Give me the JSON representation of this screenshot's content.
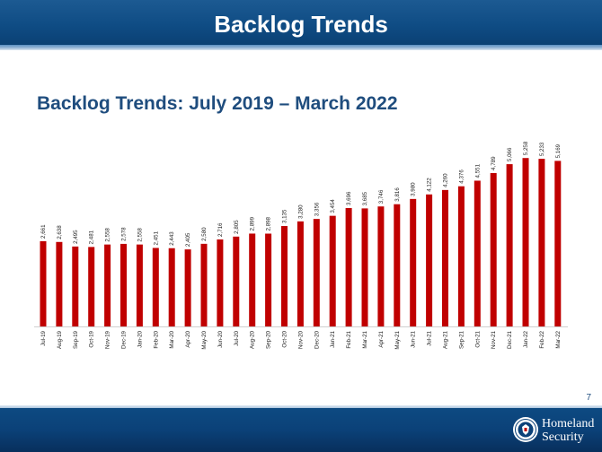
{
  "slide": {
    "header": "Backlog Trends",
    "page_number": "7",
    "logo": {
      "line1": "Homeland",
      "line2": "Security"
    }
  },
  "chart_data": {
    "type": "bar",
    "title": "Backlog Trends: July 2019 – March 2022",
    "xlabel": "",
    "ylabel": "",
    "ylim": [
      0,
      5600
    ],
    "grid": false,
    "bar_color": "#c00000",
    "categories": [
      "Jul-19",
      "Aug-19",
      "Sep-19",
      "Oct-19",
      "Nov-19",
      "Dec-19",
      "Jan-20",
      "Feb-20",
      "Mar-20",
      "Apr-20",
      "May-20",
      "Jun-20",
      "Jul-20",
      "Aug-20",
      "Sep-20",
      "Oct-20",
      "Nov-20",
      "Dec-20",
      "Jan-21",
      "Feb-21",
      "Mar-21",
      "Apr-21",
      "May-21",
      "Jun-21",
      "Jul-21",
      "Aug-21",
      "Sep-21",
      "Oct-21",
      "Nov-21",
      "Dec-21",
      "Jan-22",
      "Feb-22",
      "Mar-22"
    ],
    "values": [
      2661,
      2638,
      2495,
      2481,
      2558,
      2578,
      2558,
      2451,
      2443,
      2405,
      2580,
      2716,
      2805,
      2899,
      2898,
      3135,
      3280,
      3356,
      3454,
      3696,
      3685,
      3746,
      3816,
      3980,
      4122,
      4260,
      4376,
      4551,
      4789,
      5066,
      5258,
      5233,
      5169
    ],
    "labels": [
      "2,661",
      "2,638",
      "2,495",
      "2,481",
      "2,558",
      "2,578",
      "2,558",
      "2,451",
      "2,443",
      "2,405",
      "2,580",
      "2,716",
      "2,805",
      "2,899",
      "2,898",
      "3,135",
      "3,280",
      "3,356",
      "3,454",
      "3,696",
      "3,685",
      "3,746",
      "3,816",
      "3,980",
      "4,122",
      "4,260",
      "4,376",
      "4,551",
      "4,789",
      "5,066",
      "5,258",
      "5,233",
      "5,169"
    ]
  }
}
